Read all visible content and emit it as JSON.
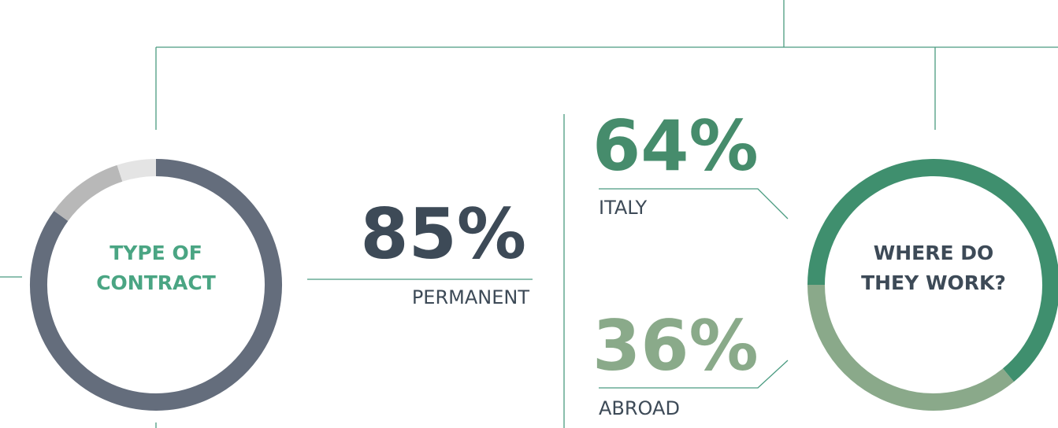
{
  "chart_data": [
    {
      "type": "donut",
      "title": [
        "TYPE OF",
        "CONTRACT"
      ],
      "title_color": "#4aa583",
      "categories": [
        "PERMANENT",
        null,
        null
      ],
      "values": [
        85,
        10,
        5
      ],
      "value_labels": [
        "85%",
        null,
        null
      ],
      "colors": [
        "#646d7c",
        "#b8b8b8",
        "#e4e4e4"
      ],
      "label_color": "#3d4a57"
    },
    {
      "type": "donut",
      "title": [
        "WHERE DO",
        "THEY WORK?"
      ],
      "title_color": "#3d4a57",
      "categories": [
        "ITALY",
        "ABROAD"
      ],
      "values": [
        64,
        36
      ],
      "value_labels": [
        "64%",
        "36%"
      ],
      "colors": [
        "#3f8f6e",
        "#8aa98a"
      ],
      "label_colors": [
        "#468c6c",
        "#8aaa8a"
      ]
    }
  ]
}
